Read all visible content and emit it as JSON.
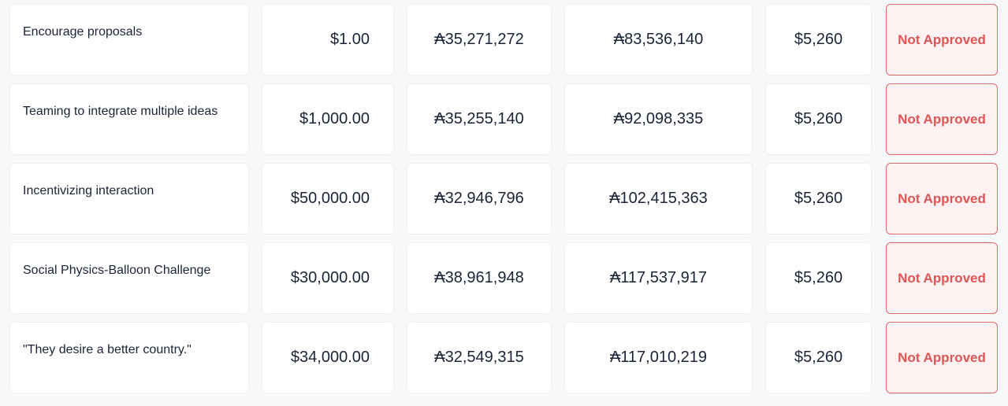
{
  "accent": {
    "status_text": "#e05555",
    "status_border": "#e06a6a",
    "status_bg": "#fdf1f1"
  },
  "rows": [
    {
      "name": "Encourage proposals",
      "amount": "$1.00",
      "value_a": "₳35,271,272",
      "value_b": "₳83,536,140",
      "fee": "$5,260",
      "status": "Not Approved"
    },
    {
      "name": "Teaming to integrate multiple ideas",
      "amount": "$1,000.00",
      "value_a": "₳35,255,140",
      "value_b": "₳92,098,335",
      "fee": "$5,260",
      "status": "Not Approved"
    },
    {
      "name": "Incentivizing interaction",
      "amount": "$50,000.00",
      "value_a": "₳32,946,796",
      "value_b": "₳102,415,363",
      "fee": "$5,260",
      "status": "Not Approved"
    },
    {
      "name": "Social Physics-Balloon Challenge",
      "amount": "$30,000.00",
      "value_a": "₳38,961,948",
      "value_b": "₳117,537,917",
      "fee": "$5,260",
      "status": "Not Approved"
    },
    {
      "name": "\"They desire a better country.\"",
      "amount": "$34,000.00",
      "value_a": "₳32,549,315",
      "value_b": "₳117,010,219",
      "fee": "$5,260",
      "status": "Not Approved"
    }
  ]
}
